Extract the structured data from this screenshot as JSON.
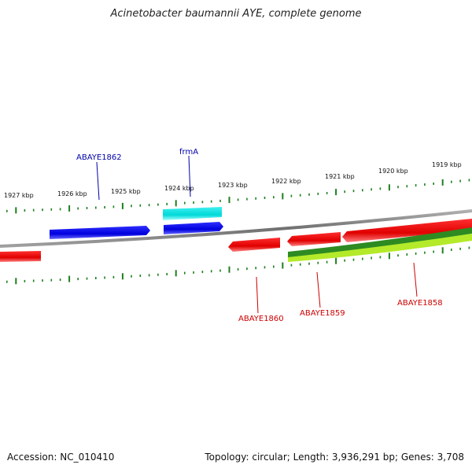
{
  "title": "Acinetobacter baumannii AYE, complete genome",
  "footer": {
    "accession": "Accession: NC_010410",
    "summary": "Topology: circular; Length: 3,936,291 bp; Genes: 3,708"
  },
  "scale_labels": [
    "1927 kbp",
    "1926 kbp",
    "1925 kbp",
    "1924 kbp",
    "1923 kbp",
    "1922 kbp",
    "1921 kbp",
    "1920 kbp",
    "1919 kbp"
  ],
  "gene_labels": {
    "ABAYE1862": "ABAYE1862",
    "frmA": "frmA",
    "ABAYE1860": "ABAYE1860",
    "ABAYE1859": "ABAYE1859",
    "ABAYE1858": "ABAYE1858"
  },
  "colors": {
    "forward_strand": "#0000ee",
    "highlight": "#00e5e5",
    "reverse_strand": "#ee0000",
    "rna_dark": "#2e8b22",
    "rna_light": "#b4ea2a",
    "backbone": "#8a8a8a",
    "tick": "#1f7f1f",
    "label_blue": "#0000aa",
    "label_red": "#cc0000"
  }
}
